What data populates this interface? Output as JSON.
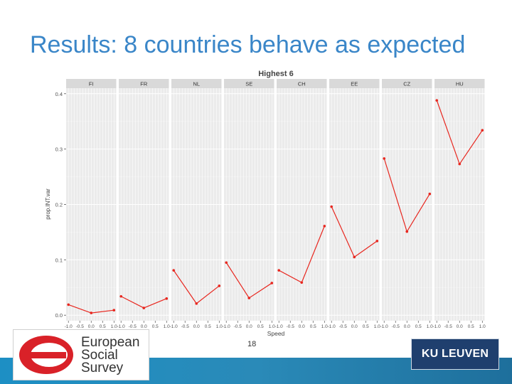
{
  "slide": {
    "title": "Results: 8 countries behave as expected",
    "page_number": "18"
  },
  "logos": {
    "ess_lines": [
      "European",
      "Social",
      "Survey"
    ],
    "kul": "KU LEUVEN"
  },
  "colors": {
    "title": "#3a86c8",
    "series": "#e8261e",
    "panel_bg": "#ebebeb",
    "strip_bg": "#d9d9d9",
    "footer": "#1d8fc4"
  },
  "chart_data": {
    "type": "line",
    "title": "Highest 6",
    "xlabel": "Speed",
    "ylabel": "prop.INT.var",
    "ylim": [
      -0.01,
      0.41
    ],
    "yticks": [
      0.0,
      0.1,
      0.2,
      0.3,
      0.4
    ],
    "ytick_labels": [
      "0.0",
      "0.1",
      "0.2",
      "0.3",
      "0.4"
    ],
    "xlim": [
      -1.1,
      1.1
    ],
    "xticks": [
      -1.0,
      -0.5,
      0.0,
      0.5,
      1.0
    ],
    "xtick_labels": [
      "-1.0",
      "-0.5",
      "0.0",
      "0.5",
      "1.0"
    ],
    "x": [
      -1,
      0,
      1
    ],
    "panels": [
      {
        "name": "FI",
        "values": [
          0.019,
          0.004,
          0.009
        ]
      },
      {
        "name": "FR",
        "values": [
          0.034,
          0.013,
          0.03
        ]
      },
      {
        "name": "NL",
        "values": [
          0.081,
          0.021,
          0.053
        ]
      },
      {
        "name": "SE",
        "values": [
          0.095,
          0.031,
          0.058
        ]
      },
      {
        "name": "CH",
        "values": [
          0.081,
          0.059,
          0.161
        ]
      },
      {
        "name": "EE",
        "values": [
          0.196,
          0.105,
          0.134
        ]
      },
      {
        "name": "CZ",
        "values": [
          0.283,
          0.151,
          0.219
        ]
      },
      {
        "name": "HU",
        "values": [
          0.388,
          0.273,
          0.334
        ]
      }
    ]
  }
}
